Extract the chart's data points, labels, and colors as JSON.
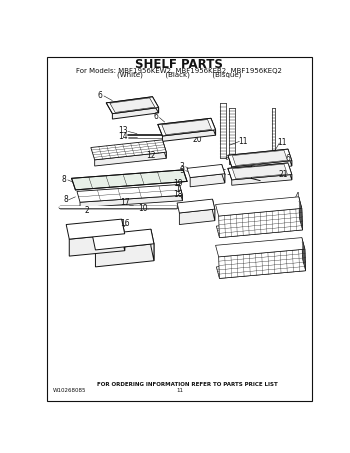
{
  "title": "SHELF PARTS",
  "subtitle": "For Models: MBF1956KEW2, MBF1956KEB2, MBF1956KEQ2",
  "subtitle2": "(White)          (Black)          (Bisque)",
  "footer": "FOR ORDERING INFORMATION REFER TO PARTS PRICE LIST",
  "doc_num": "W10268085",
  "page_num": "11",
  "bg_color": "#ffffff",
  "line_color": "#111111",
  "title_fontsize": 8.5,
  "subtitle_fontsize": 5.0,
  "footer_fontsize": 4.0,
  "label_fontsize": 5.5
}
